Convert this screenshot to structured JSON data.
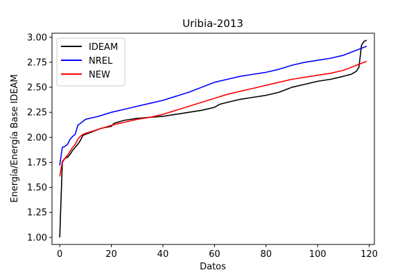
{
  "chart_data": {
    "type": "line",
    "title": "Uribia-2013",
    "xlabel": "Datos",
    "ylabel": "Energía/Energía Base IDEAM",
    "xlim": [
      -3,
      122
    ],
    "ylim": [
      0.93,
      3.04
    ],
    "xticks": [
      0,
      20,
      40,
      60,
      80,
      100,
      120
    ],
    "yticks": [
      1.0,
      1.25,
      1.5,
      1.75,
      2.0,
      2.25,
      2.5,
      2.75,
      3.0
    ],
    "ytick_labels": [
      "1.00",
      "1.25",
      "1.50",
      "1.75",
      "2.00",
      "2.25",
      "2.50",
      "2.75",
      "3.00"
    ],
    "grid": false,
    "legend_position": "top-left",
    "series": [
      {
        "name": "IDEAM",
        "color": "#000000",
        "x": [
          0,
          1,
          2,
          3,
          4,
          5,
          6,
          7,
          8,
          9,
          10,
          12,
          14,
          16,
          18,
          20,
          21,
          25,
          30,
          35,
          40,
          45,
          50,
          55,
          60,
          62,
          65,
          70,
          75,
          80,
          85,
          90,
          95,
          100,
          105,
          110,
          113,
          115,
          116,
          117,
          118,
          119
        ],
        "y": [
          1.0,
          1.75,
          1.79,
          1.8,
          1.83,
          1.87,
          1.9,
          1.93,
          1.97,
          2.02,
          2.03,
          2.05,
          2.07,
          2.09,
          2.1,
          2.11,
          2.14,
          2.17,
          2.19,
          2.2,
          2.21,
          2.23,
          2.25,
          2.27,
          2.3,
          2.33,
          2.35,
          2.38,
          2.4,
          2.42,
          2.45,
          2.5,
          2.53,
          2.56,
          2.58,
          2.61,
          2.63,
          2.66,
          2.7,
          2.92,
          2.96,
          2.97
        ]
      },
      {
        "name": "NREL",
        "color": "#0000ff",
        "x": [
          0,
          1,
          2,
          3,
          4,
          5,
          6,
          7,
          8,
          9,
          10,
          15,
          20,
          25,
          30,
          35,
          40,
          45,
          50,
          55,
          60,
          65,
          70,
          75,
          80,
          85,
          90,
          95,
          100,
          105,
          110,
          115,
          119
        ],
        "y": [
          1.72,
          1.9,
          1.91,
          1.93,
          1.98,
          2.01,
          2.03,
          2.12,
          2.14,
          2.16,
          2.18,
          2.21,
          2.25,
          2.28,
          2.31,
          2.34,
          2.37,
          2.41,
          2.45,
          2.5,
          2.55,
          2.58,
          2.61,
          2.63,
          2.65,
          2.68,
          2.72,
          2.75,
          2.77,
          2.79,
          2.82,
          2.87,
          2.91
        ]
      },
      {
        "name": "NEW",
        "color": "#ff0000",
        "x": [
          0,
          1,
          2,
          3,
          4,
          5,
          6,
          7,
          8,
          9,
          10,
          15,
          20,
          25,
          30,
          35,
          40,
          45,
          50,
          55,
          60,
          65,
          70,
          75,
          80,
          85,
          90,
          95,
          100,
          105,
          110,
          115,
          119
        ],
        "y": [
          1.61,
          1.76,
          1.79,
          1.82,
          1.86,
          1.9,
          1.93,
          1.98,
          2.01,
          2.03,
          2.04,
          2.08,
          2.12,
          2.15,
          2.18,
          2.2,
          2.23,
          2.27,
          2.31,
          2.35,
          2.39,
          2.43,
          2.46,
          2.49,
          2.52,
          2.55,
          2.58,
          2.6,
          2.62,
          2.64,
          2.67,
          2.72,
          2.76
        ]
      }
    ]
  }
}
